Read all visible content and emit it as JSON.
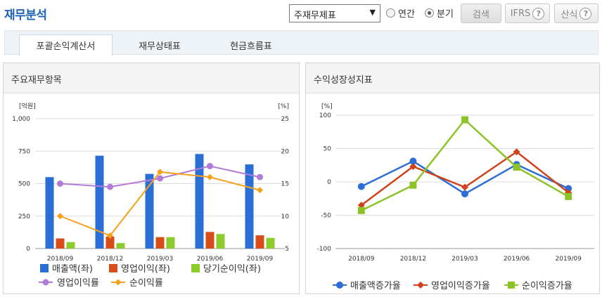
{
  "header": {
    "title": "재무분석",
    "select_value": "주재무제표",
    "radio_annual": "연간",
    "radio_quarter": "분기",
    "search_label": "검색",
    "ifrs_label": "IFRS",
    "calc_label": "산식",
    "help_glyph": "?"
  },
  "tabs": [
    "포괄손익계산서",
    "재무상태표",
    "현금흐름표"
  ],
  "left_panel": {
    "title": "주요재무항목"
  },
  "right_panel": {
    "title": "수익성장성지표"
  },
  "colors": {
    "revenue": "#2b6fd6",
    "op_income": "#d94d1a",
    "net_income": "#8ccc2d",
    "op_margin": "#b27ad9",
    "net_margin": "#f5a11c",
    "rev_growth": "#2b6fd6",
    "op_growth": "#d0421b",
    "net_growth": "#8cc428"
  },
  "chart_data": [
    {
      "type": "bar",
      "title": "주요재무항목",
      "categories": [
        "2018/09",
        "2018/12",
        "2019/03",
        "2019/06",
        "2019/09"
      ],
      "ylabel_left": "[억원]",
      "ylabel_right": "[%]",
      "ylim_left": [
        0,
        1000
      ],
      "ylim_right": [
        5,
        25
      ],
      "yticks_left": [
        "0",
        "250",
        "500",
        "750",
        "1,000"
      ],
      "yticks_right": [
        "5",
        "10",
        "15",
        "20",
        "25"
      ],
      "series": [
        {
          "name": "매출액(좌)",
          "kind": "bar",
          "axis": "left",
          "values": [
            550,
            715,
            575,
            728,
            648
          ]
        },
        {
          "name": "영업이익(좌)",
          "kind": "bar",
          "axis": "left",
          "values": [
            78,
            92,
            88,
            128,
            102
          ]
        },
        {
          "name": "당기순이익(좌)",
          "kind": "bar",
          "axis": "left",
          "values": [
            50,
            42,
            88,
            112,
            82
          ]
        },
        {
          "name": "영업이익률",
          "kind": "line",
          "axis": "right",
          "values": [
            15.0,
            14.5,
            15.8,
            17.7,
            16.0
          ]
        },
        {
          "name": "순이익률",
          "kind": "line",
          "axis": "right",
          "values": [
            10.0,
            7.0,
            16.8,
            16.0,
            14.0
          ]
        }
      ],
      "grid": "horizontal",
      "legend_position": "bottom"
    },
    {
      "type": "line",
      "title": "수익성장성지표",
      "categories": [
        "2018/09",
        "2018/12",
        "2019/03",
        "2019/06",
        "2019/09"
      ],
      "ylabel": "[%]",
      "ylim": [
        -100,
        100
      ],
      "yticks": [
        "100",
        "50",
        "0",
        "-50",
        "-100"
      ],
      "series": [
        {
          "name": "매출액증가율",
          "values": [
            -7,
            31,
            -18,
            26,
            -10
          ]
        },
        {
          "name": "영업이익증가율",
          "values": [
            -35,
            23,
            -8,
            45,
            -16
          ]
        },
        {
          "name": "순이익증가율",
          "values": [
            -43,
            -5,
            93,
            22,
            -22
          ]
        }
      ],
      "grid": "horizontal",
      "legend_position": "bottom"
    }
  ]
}
